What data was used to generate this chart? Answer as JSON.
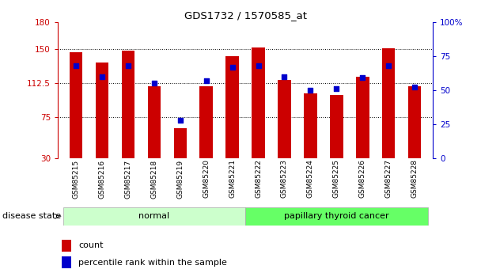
{
  "title": "GDS1732 / 1570585_at",
  "samples": [
    "GSM85215",
    "GSM85216",
    "GSM85217",
    "GSM85218",
    "GSM85219",
    "GSM85220",
    "GSM85221",
    "GSM85222",
    "GSM85223",
    "GSM85224",
    "GSM85225",
    "GSM85226",
    "GSM85227",
    "GSM85228"
  ],
  "bar_values": [
    147,
    135,
    148,
    109,
    63,
    109,
    142,
    152,
    116,
    101,
    100,
    120,
    151,
    109
  ],
  "dot_values": [
    68,
    60,
    68,
    55,
    28,
    57,
    67,
    68,
    60,
    50,
    51,
    59,
    68,
    52
  ],
  "bar_color": "#cc0000",
  "dot_color": "#0000cc",
  "ylim_left": [
    30,
    180
  ],
  "ylim_right": [
    0,
    100
  ],
  "yticks_left": [
    30,
    75,
    112.5,
    150,
    180
  ],
  "ytick_labels_left": [
    "30",
    "75",
    "112.5",
    "150",
    "180"
  ],
  "yticks_right": [
    0,
    25,
    50,
    75,
    100
  ],
  "ytick_labels_right": [
    "0",
    "25",
    "50",
    "75",
    "100%"
  ],
  "grid_values": [
    75,
    112.5,
    150
  ],
  "normal_label": "normal",
  "cancer_label": "papillary thyroid cancer",
  "normal_color": "#ccffcc",
  "cancer_color": "#66ff66",
  "disease_label": "disease state",
  "legend_count": "count",
  "legend_percentile": "percentile rank within the sample",
  "bar_width": 0.5,
  "bg_color": "#ffffff",
  "plot_bg_color": "#ffffff"
}
